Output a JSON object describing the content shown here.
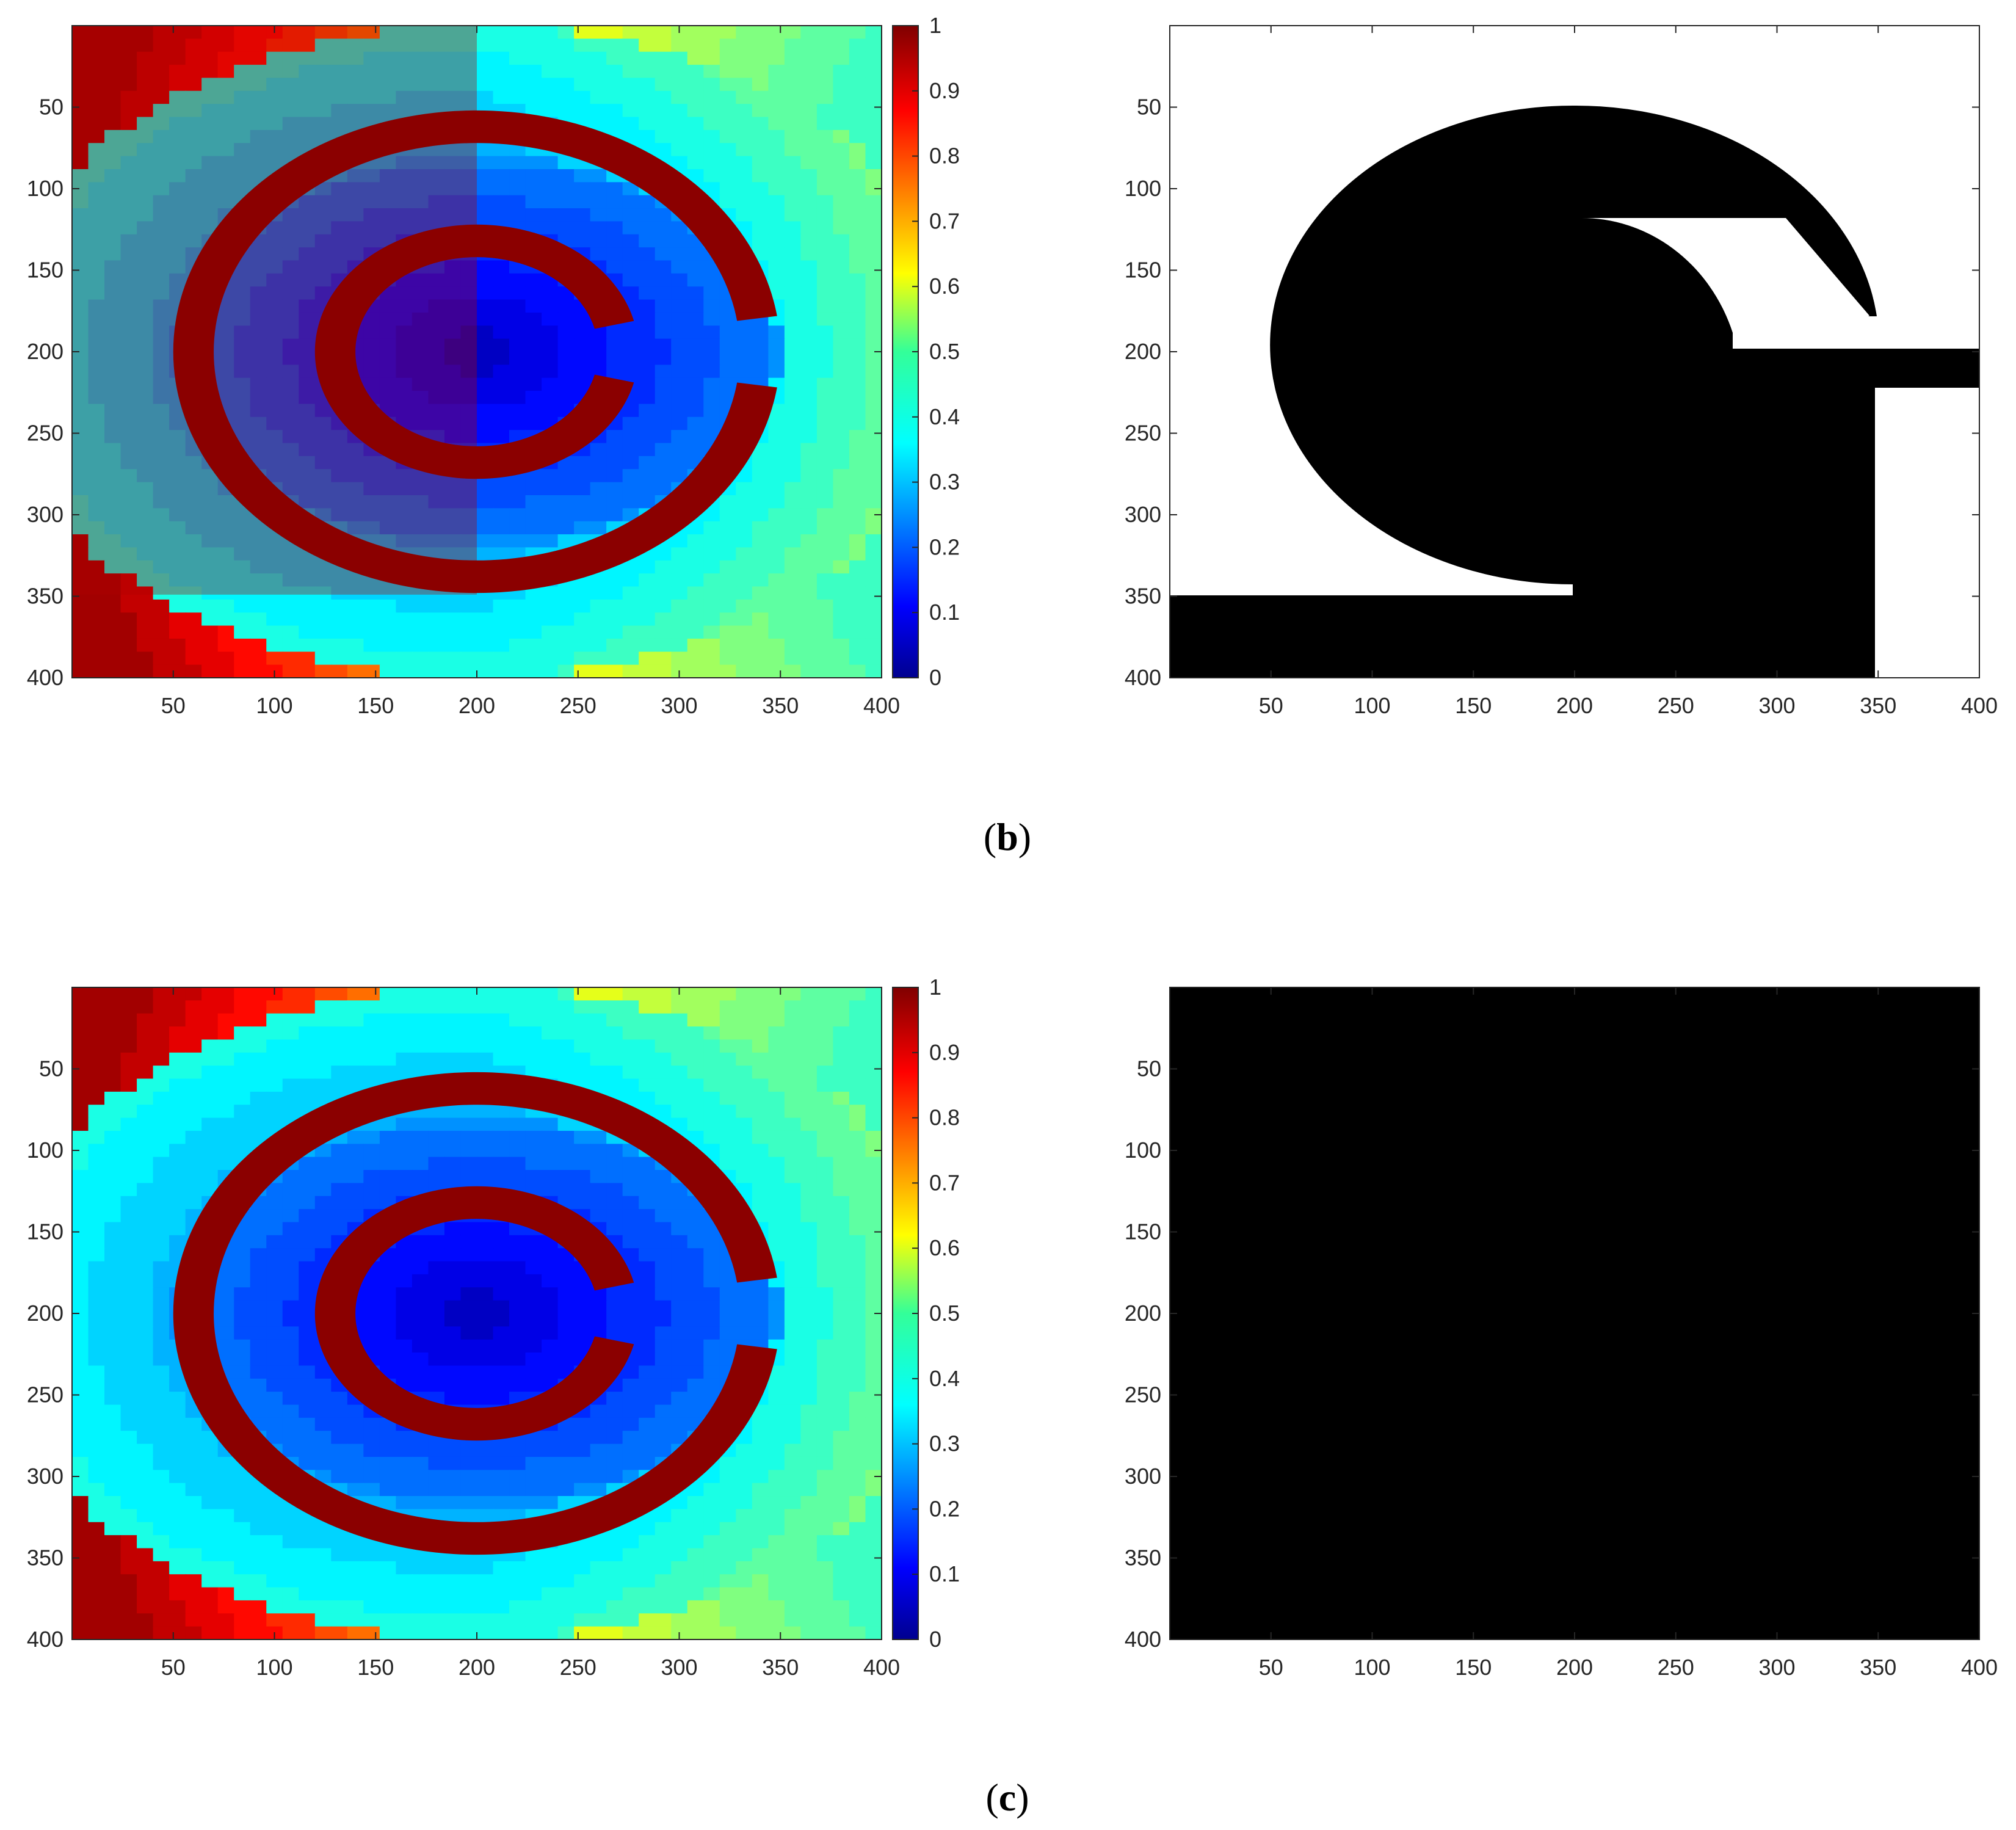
{
  "colors": {
    "wall": "#8b0000",
    "black": "#000000",
    "white": "#ffffff",
    "axis": "#262626"
  },
  "captions": {
    "b": {
      "open": "(",
      "letter": "b",
      "close": ")"
    },
    "c": {
      "open": "(",
      "letter": "c",
      "close": ")"
    }
  },
  "chart_data": [
    {
      "id": "b-left",
      "type": "heatmap",
      "title": "",
      "xlabel": "",
      "ylabel": "",
      "xlim": [
        0,
        400
      ],
      "ylim": [
        400,
        0
      ],
      "x_ticks": [
        50,
        100,
        150,
        200,
        250,
        300,
        350,
        400
      ],
      "y_ticks": [
        50,
        100,
        150,
        200,
        250,
        300,
        350,
        400
      ],
      "colormap": "jet",
      "colorbar": {
        "range": [
          0,
          1
        ],
        "ticks": [
          0,
          0.1,
          0.2,
          0.3,
          0.4,
          0.5,
          0.6,
          0.7,
          0.8,
          0.9,
          1
        ]
      },
      "source_center": [
        200,
        200
      ],
      "obstacle_value": 1,
      "has_left_strip": true,
      "strip_rows": [
        0,
        349
      ],
      "strip_cols": [
        0,
        200
      ]
    },
    {
      "id": "b-right",
      "type": "heatmap",
      "title": "",
      "xlabel": "",
      "ylabel": "",
      "xlim": [
        0,
        400
      ],
      "ylim": [
        400,
        0
      ],
      "x_ticks": [
        50,
        100,
        150,
        200,
        250,
        300,
        350,
        400
      ],
      "y_ticks": [
        50,
        100,
        150,
        200,
        250,
        300,
        350,
        400
      ],
      "colormap": "binary",
      "background": "white",
      "black_regions": [
        "left-half disc (center 200,200)",
        "upper-right crescent arc",
        "band 0-400 x 349-400",
        "band 200-349 x 200-400",
        "band 278-400 x 200-220"
      ]
    },
    {
      "id": "c-left",
      "type": "heatmap",
      "title": "",
      "xlabel": "",
      "ylabel": "",
      "xlim": [
        0,
        400
      ],
      "ylim": [
        400,
        0
      ],
      "x_ticks": [
        50,
        100,
        150,
        200,
        250,
        300,
        350,
        400
      ],
      "y_ticks": [
        50,
        100,
        150,
        200,
        250,
        300,
        350,
        400
      ],
      "colormap": "jet",
      "colorbar": {
        "range": [
          0,
          1
        ],
        "ticks": [
          0,
          0.1,
          0.2,
          0.3,
          0.4,
          0.5,
          0.6,
          0.7,
          0.8,
          0.9,
          1
        ]
      },
      "source_center": [
        200,
        200
      ],
      "obstacle_value": 1,
      "has_left_strip": false
    },
    {
      "id": "c-right",
      "type": "heatmap",
      "title": "",
      "xlabel": "",
      "ylabel": "",
      "xlim": [
        0,
        400
      ],
      "ylim": [
        400,
        0
      ],
      "x_ticks": [
        50,
        100,
        150,
        200,
        250,
        300,
        350,
        400
      ],
      "y_ticks": [
        50,
        100,
        150,
        200,
        250,
        300,
        350,
        400
      ],
      "colormap": "binary",
      "background": "black"
    }
  ]
}
